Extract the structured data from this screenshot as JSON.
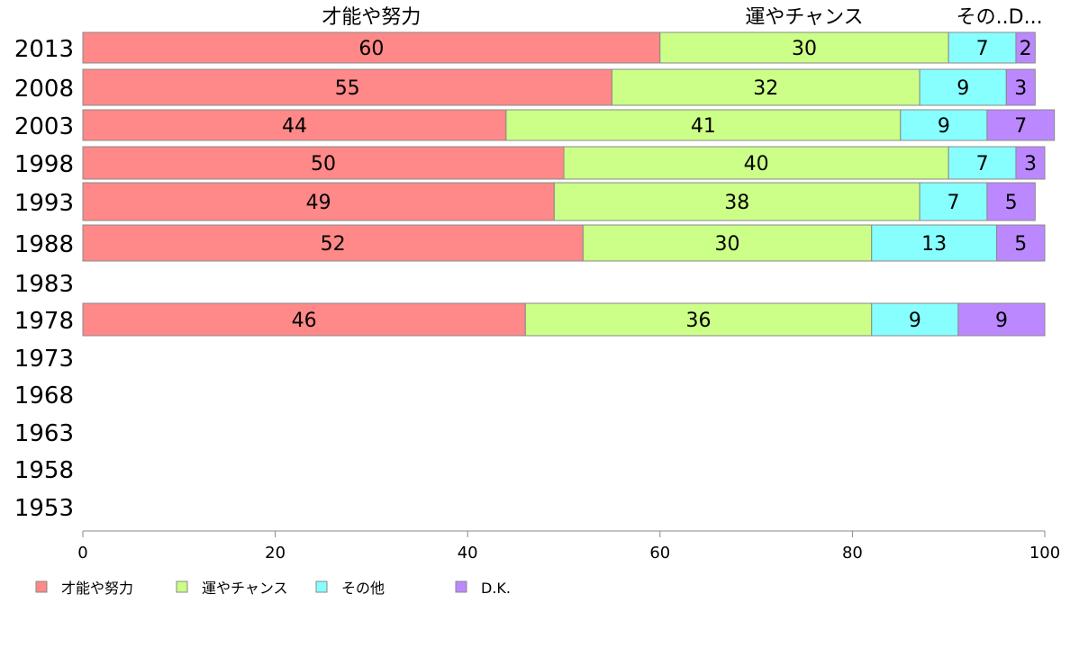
{
  "chart_data": {
    "type": "bar",
    "orientation": "horizontal",
    "stacked": true,
    "title": "",
    "xlabel": "",
    "ylabel": "",
    "xlim": [
      0,
      100
    ],
    "x_ticks": [
      "0",
      "20",
      "40",
      "60",
      "80",
      "100"
    ],
    "grid": false,
    "legend_position": "bottom-left",
    "categories": [
      "2013",
      "2008",
      "2003",
      "1998",
      "1993",
      "1988",
      "1983",
      "1978",
      "1973",
      "1968",
      "1963",
      "1958",
      "1953"
    ],
    "top_labels": [
      "才能や努力",
      "運やチャンス",
      "その..",
      "D..."
    ],
    "series": [
      {
        "name": "才能や努力",
        "color": "#ff8888",
        "values": [
          60,
          55,
          44,
          50,
          49,
          52,
          null,
          46,
          null,
          null,
          null,
          null,
          null
        ]
      },
      {
        "name": "運やチャンス",
        "color": "#ccff88",
        "values": [
          30,
          32,
          41,
          40,
          38,
          30,
          null,
          36,
          null,
          null,
          null,
          null,
          null
        ]
      },
      {
        "name": "その他",
        "color": "#88ffff",
        "values": [
          7,
          9,
          9,
          7,
          7,
          13,
          null,
          9,
          null,
          null,
          null,
          null,
          null
        ]
      },
      {
        "name": "D.K.",
        "color": "#bb88ff",
        "values": [
          2,
          3,
          7,
          3,
          5,
          5,
          null,
          9,
          null,
          null,
          null,
          null,
          null
        ]
      }
    ]
  }
}
